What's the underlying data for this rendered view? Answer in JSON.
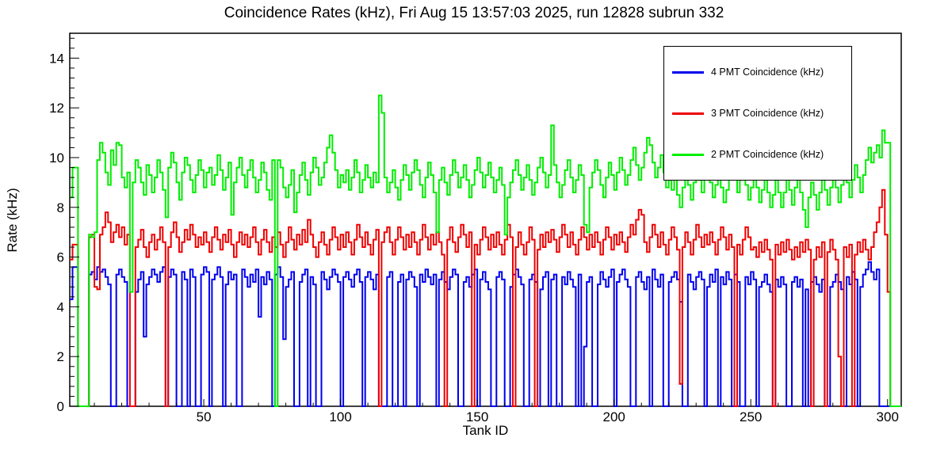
{
  "chart": {
    "title": "Coincidence Rates (kHz), Fri Aug 15 13:57:03 2025, run 12828 subrun 332",
    "xlabel": "Tank ID",
    "ylabel": "Rate (kHz)"
  },
  "chart_data": {
    "type": "line",
    "style": "histogram-step",
    "title": "Coincidence Rates (kHz), Fri Aug 15 13:57:03 2025, run 12828 subrun 332",
    "xlabel": "Tank ID",
    "ylabel": "Rate (kHz)",
    "xlim": [
      1,
      305
    ],
    "ylim": [
      0,
      15
    ],
    "x_ticks_major": [
      50,
      100,
      150,
      200,
      250,
      300
    ],
    "x_minor_step": 10,
    "y_ticks_major": [
      0,
      2,
      4,
      6,
      8,
      10,
      12,
      14
    ],
    "y_minor_step": 0.4,
    "grid": false,
    "legend_position": "top-right",
    "x_start_tank_id": 1,
    "series": [
      {
        "name": "4 PMT Coincidence (kHz)",
        "color": "#0000ee",
        "values": [
          4.3,
          5.6,
          5.6,
          0,
          0,
          0,
          0,
          5.3,
          5.4,
          5.1,
          5.6,
          5.4,
          5.5,
          5.2,
          4.9,
          0,
          0,
          5.3,
          5.5,
          5.2,
          5.0,
          0,
          0,
          0,
          4.6,
          5.1,
          5.4,
          2.8,
          4.9,
          5.2,
          5.5,
          5.3,
          5.0,
          5.4,
          5.6,
          0,
          5.2,
          5.5,
          5.3,
          0,
          0,
          5.4,
          5.1,
          0,
          5.5,
          5.2,
          0,
          0,
          5.3,
          5.6,
          5.4,
          0,
          5.1,
          5.3,
          5.6,
          5.2,
          0,
          4.9,
          5.4,
          5.1,
          5.3,
          0,
          0,
          5.5,
          5.2,
          4.8,
          5.3,
          5.0,
          5.5,
          3.6,
          5.2,
          4.9,
          5.4,
          5.1,
          0,
          5.3,
          5.6,
          5.2,
          2.7,
          4.8,
          5.1,
          5.4,
          0,
          0,
          5.0,
          5.3,
          5.5,
          0,
          5.2,
          4.9,
          0,
          0,
          5.4,
          5.1,
          4.7,
          5.2,
          5.5,
          5.3,
          5.0,
          0,
          5.2,
          5.4,
          5.1,
          4.8,
          5.3,
          5.5,
          5.0,
          0,
          5.2,
          5.4,
          5.1,
          4.7,
          5.3,
          0,
          0,
          0,
          5.2,
          5.4,
          0,
          0,
          5.0,
          5.3,
          0,
          5.1,
          5.4,
          5.2,
          4.8,
          0,
          5.3,
          5.0,
          5.5,
          5.2,
          4.9,
          5.3,
          0,
          5.1,
          5.4,
          5.0,
          4.7,
          5.2,
          5.5,
          5.3,
          0,
          0,
          5.0,
          5.2,
          4.8,
          5.3,
          5.5,
          0,
          5.1,
          5.4,
          5.0,
          4.7,
          0,
          0,
          5.2,
          5.4,
          5.1,
          0,
          0,
          4.8,
          5.3,
          5.5,
          5.2,
          4.9,
          0,
          0,
          5.1,
          5.3,
          5.0,
          0,
          4.7,
          5.2,
          5.4,
          0,
          5.1,
          5.3,
          0,
          0,
          5.2,
          4.9,
          5.4,
          5.1,
          4.8,
          0,
          5.3,
          0,
          2.4,
          5.0,
          5.2,
          0,
          0,
          4.9,
          5.4,
          5.1,
          4.8,
          5.2,
          5.5,
          0,
          5.0,
          5.3,
          5.5,
          5.1,
          4.8,
          0,
          0,
          5.2,
          5.4,
          5.0,
          4.7,
          5.2,
          0,
          5.5,
          5.1,
          4.8,
          5.3,
          0,
          0,
          5.0,
          5.2,
          5.4,
          5.1,
          4.2,
          0,
          0,
          5.3,
          5.0,
          4.7,
          5.2,
          5.4,
          5.1,
          0,
          4.8,
          5.3,
          5.0,
          5.5,
          0,
          5.2,
          4.9,
          5.4,
          5.1,
          0,
          5.3,
          5.0,
          0,
          0,
          5.2,
          4.9,
          5.4,
          5.1,
          0,
          4.8,
          5.0,
          5.3,
          4.9,
          4.6,
          0,
          5.1,
          4.8,
          5.2,
          4.9,
          0,
          0,
          5.0,
          5.2,
          4.8,
          5.1,
          0,
          4.7,
          0,
          5.0,
          5.2,
          4.9,
          4.6,
          5.1,
          0,
          0,
          4.8,
          5.0,
          5.3,
          5.0,
          4.7,
          0,
          5.2,
          4.9,
          5.4,
          5.1,
          0,
          4.8,
          5.3,
          5.5,
          5.8,
          5.4,
          5.1,
          5.5,
          0,
          0,
          0,
          0,
          0,
          0,
          0,
          0
        ]
      },
      {
        "name": "3 PMT Coincidence (kHz)",
        "color": "#ee0000",
        "values": [
          5.9,
          6.5,
          6.5,
          0,
          0,
          0,
          0,
          6.8,
          6.9,
          4.8,
          4.7,
          6.9,
          7.2,
          7.8,
          7.4,
          6.6,
          7.0,
          7.3,
          6.8,
          7.2,
          6.5,
          6.9,
          0,
          0,
          6.4,
          6.7,
          7.1,
          6.4,
          6.0,
          6.6,
          6.9,
          6.3,
          6.7,
          7.2,
          6.6,
          0,
          6.4,
          7.0,
          7.4,
          6.8,
          6.2,
          6.6,
          7.1,
          6.7,
          7.3,
          6.9,
          6.4,
          6.8,
          6.5,
          7.0,
          6.6,
          6.2,
          6.8,
          7.2,
          6.7,
          6.3,
          6.9,
          6.6,
          7.1,
          6.5,
          6.0,
          6.6,
          7.0,
          6.5,
          6.9,
          6.4,
          6.8,
          7.2,
          6.6,
          6.1,
          6.7,
          7.1,
          6.6,
          6.2,
          6.8,
          6.4,
          7.0,
          6.5,
          6.0,
          6.6,
          7.2,
          6.7,
          6.3,
          6.9,
          6.5,
          7.1,
          6.6,
          7.5,
          6.9,
          6.4,
          6.0,
          6.6,
          7.0,
          6.5,
          6.1,
          6.7,
          7.2,
          6.8,
          6.3,
          6.9,
          6.4,
          7.0,
          6.6,
          6.1,
          6.7,
          7.3,
          6.8,
          6.4,
          7.0,
          6.5,
          6.1,
          6.7,
          7.1,
          0,
          6.6,
          7.0,
          7.2,
          6.6,
          6.1,
          6.7,
          7.2,
          6.8,
          6.3,
          6.9,
          6.4,
          7.0,
          6.6,
          6.1,
          6.7,
          7.3,
          6.8,
          6.3,
          6.9,
          6.5,
          7.0,
          6.6,
          6.1,
          0,
          6.7,
          7.2,
          6.6,
          6.2,
          6.8,
          7.3,
          6.9,
          6.4,
          7.0,
          0,
          6.5,
          6.1,
          6.7,
          7.2,
          6.8,
          6.3,
          6.9,
          6.4,
          7.0,
          6.5,
          6.1,
          6.7,
          7.3,
          6.8,
          0,
          6.4,
          7.0,
          6.5,
          6.1,
          6.6,
          7.2,
          6.7,
          0,
          6.3,
          6.9,
          6.4,
          7.0,
          6.6,
          7.1,
          6.7,
          6.2,
          6.8,
          7.3,
          6.9,
          6.4,
          7.0,
          6.5,
          6.1,
          6.7,
          7.2,
          6.8,
          6.3,
          6.9,
          6.4,
          7.0,
          6.6,
          6.1,
          6.7,
          7.2,
          6.8,
          6.3,
          6.9,
          6.5,
          7.0,
          6.6,
          6.2,
          6.8,
          7.3,
          6.9,
          7.5,
          7.9,
          7.7,
          6.6,
          6.2,
          6.8,
          7.3,
          6.9,
          6.4,
          7.0,
          6.5,
          6.1,
          6.7,
          7.2,
          6.8,
          6.3,
          0.9,
          6.4,
          7.0,
          6.6,
          6.1,
          6.7,
          7.3,
          6.8,
          6.4,
          6.9,
          6.5,
          7.0,
          6.6,
          6.1,
          6.7,
          7.2,
          6.8,
          6.3,
          6.9,
          6.4,
          0,
          6.5,
          6.1,
          6.7,
          7.2,
          6.8,
          6.3,
          6.4,
          6.0,
          6.6,
          6.2,
          6.7,
          6.3,
          5.9,
          0,
          6.5,
          6.1,
          6.6,
          6.2,
          6.7,
          6.3,
          5.9,
          6.4,
          6.0,
          6.6,
          6.2,
          6.7,
          6.3,
          0,
          5.9,
          6.4,
          6.0,
          6.6,
          0,
          6.2,
          6.7,
          6.3,
          5.9,
          2.0,
          0,
          6.4,
          6.0,
          6.5,
          0,
          6.1,
          6.6,
          6.2,
          6.7,
          6.3,
          5.9,
          6.4,
          7.0,
          7.4,
          8.0,
          8.7,
          6.9,
          4.6,
          0,
          0,
          0,
          0
        ]
      },
      {
        "name": "2 PMT Coincidence (kHz)",
        "color": "#00ee00",
        "values": [
          8.4,
          9.6,
          9.6,
          0,
          0,
          0,
          0,
          6.9,
          6.8,
          7.0,
          9.9,
          10.6,
          10.2,
          9.4,
          8.9,
          10.3,
          9.7,
          10.6,
          10.5,
          9.2,
          8.8,
          9.4,
          4.6,
          9.0,
          9.9,
          9.6,
          9.0,
          8.5,
          9.7,
          9.3,
          8.6,
          9.2,
          9.9,
          9.4,
          8.7,
          7.6,
          9.6,
          10.2,
          9.8,
          9.0,
          8.3,
          9.4,
          10.0,
          9.7,
          9.1,
          8.6,
          9.3,
          9.9,
          9.5,
          8.8,
          9.4,
          9.6,
          8.9,
          9.3,
          10.1,
          9.5,
          8.7,
          9.2,
          9.8,
          7.7,
          9.0,
          9.6,
          10.0,
          9.3,
          8.8,
          9.5,
          9.9,
          9.2,
          8.6,
          9.1,
          9.8,
          9.4,
          8.7,
          8.3,
          9.9,
          0,
          9.9,
          9.6,
          8.8,
          8.4,
          8.9,
          9.5,
          7.8,
          8.6,
          9.3,
          9.8,
          9.1,
          8.5,
          9.4,
          10.0,
          9.6,
          8.9,
          9.2,
          9.8,
          10.4,
          10.9,
          10.2,
          9.5,
          8.8,
          9.3,
          9.0,
          9.5,
          8.7,
          9.2,
          9.9,
          9.4,
          8.6,
          9.1,
          9.7,
          9.2,
          8.8,
          9.4,
          9.0,
          12.5,
          11.8,
          9.2,
          8.6,
          9.0,
          9.5,
          8.8,
          8.3,
          9.1,
          9.7,
          9.3,
          8.7,
          9.4,
          9.9,
          9.5,
          8.9,
          8.4,
          9.2,
          9.8,
          9.3,
          8.6,
          7.0,
          9.1,
          9.6,
          9.0,
          8.5,
          9.3,
          9.9,
          9.4,
          8.8,
          9.2,
          9.7,
          9.1,
          8.4,
          8.9,
          9.5,
          10.0,
          9.4,
          8.8,
          9.3,
          9.8,
          9.2,
          8.6,
          9.1,
          9.6,
          8.9,
          6.9,
          8.4,
          9.0,
          9.5,
          9.9,
          9.3,
          8.7,
          9.2,
          9.7,
          9.1,
          8.5,
          9.0,
          9.6,
          10.0,
          9.4,
          8.8,
          9.3,
          11.3,
          9.7,
          9.0,
          8.4,
          8.9,
          9.5,
          9.9,
          9.2,
          8.6,
          9.1,
          9.7,
          9.3,
          7.3,
          7.0,
          8.8,
          9.4,
          9.9,
          9.5,
          8.9,
          8.4,
          9.2,
          9.8,
          9.3,
          8.7,
          9.4,
          10.0,
          9.5,
          8.9,
          9.3,
          9.9,
          10.4,
          9.7,
          9.1,
          9.6,
          10.2,
          10.8,
          10.5,
          9.8,
          9.2,
          9.6,
          10.1,
          9.4,
          8.8,
          9.3,
          8.7,
          9.2,
          8.5,
          8.0,
          8.8,
          9.4,
          8.9,
          8.3,
          9.0,
          9.6,
          9.1,
          8.6,
          9.2,
          9.7,
          9.0,
          8.4,
          8.9,
          9.5,
          8.8,
          8.2,
          8.7,
          9.3,
          9.8,
          9.2,
          8.6,
          9.1,
          9.6,
          8.9,
          8.3,
          8.8,
          9.4,
          8.8,
          8.2,
          8.7,
          9.2,
          8.6,
          8.0,
          8.5,
          9.1,
          8.6,
          8.0,
          8.6,
          9.2,
          8.7,
          8.1,
          8.8,
          9.3,
          8.6,
          7.9,
          7.2,
          8.4,
          9.0,
          8.5,
          7.9,
          8.6,
          9.2,
          8.7,
          8.1,
          8.8,
          9.4,
          8.8,
          8.2,
          8.9,
          9.5,
          9.0,
          8.4,
          9.1,
          9.7,
          9.2,
          8.6,
          9.3,
          9.9,
          10.4,
          9.8,
          10.2,
          10.5,
          10.0,
          11.1,
          10.6,
          10.6,
          0,
          0,
          0,
          0
        ]
      }
    ]
  },
  "legend": {
    "items": [
      {
        "label": "4 PMT Coincidence (kHz)",
        "color": "#0000ee"
      },
      {
        "label": "3 PMT Coincidence (kHz)",
        "color": "#ee0000"
      },
      {
        "label": "2 PMT Coincidence (kHz)",
        "color": "#00ee00"
      }
    ]
  }
}
